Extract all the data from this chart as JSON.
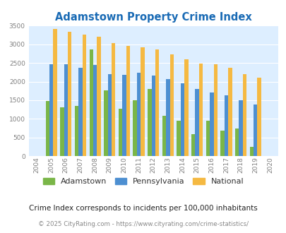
{
  "title": "Adamstown Property Crime Index",
  "years": [
    2004,
    2005,
    2006,
    2007,
    2008,
    2009,
    2010,
    2011,
    2012,
    2013,
    2014,
    2015,
    2016,
    2017,
    2018,
    2019,
    2020
  ],
  "adamstown": [
    0,
    1470,
    1310,
    1350,
    2860,
    1760,
    1270,
    1500,
    1800,
    1090,
    940,
    590,
    940,
    690,
    750,
    250,
    0
  ],
  "pennsylvania": [
    0,
    2460,
    2470,
    2370,
    2440,
    2200,
    2180,
    2240,
    2160,
    2070,
    1950,
    1800,
    1710,
    1630,
    1490,
    1380,
    0
  ],
  "national": [
    0,
    3420,
    3330,
    3260,
    3200,
    3040,
    2950,
    2910,
    2860,
    2720,
    2590,
    2490,
    2460,
    2360,
    2200,
    2110,
    0
  ],
  "adamstown_color": "#7ab648",
  "pennsylvania_color": "#4d8fd1",
  "national_color": "#f5b942",
  "bg_color": "#ddeeff",
  "title_color": "#1a6bb5",
  "ylim": [
    0,
    3500
  ],
  "yticks": [
    0,
    500,
    1000,
    1500,
    2000,
    2500,
    3000,
    3500
  ],
  "subtitle": "Crime Index corresponds to incidents per 100,000 inhabitants",
  "footer": "© 2025 CityRating.com - https://www.cityrating.com/crime-statistics/",
  "legend_labels": [
    "Adamstown",
    "Pennsylvania",
    "National"
  ]
}
